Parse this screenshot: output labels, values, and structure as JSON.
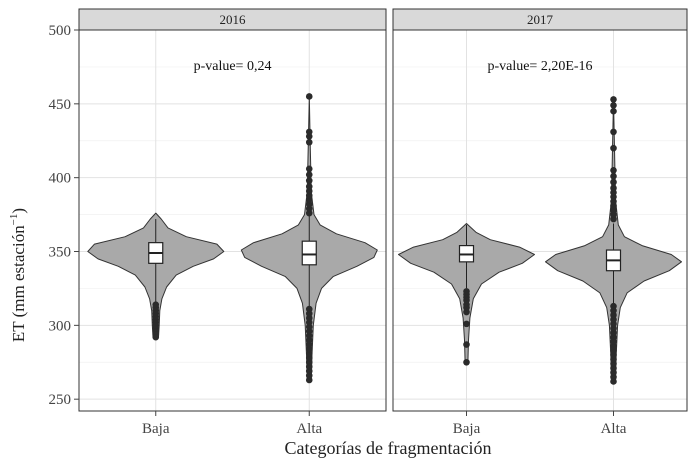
{
  "chart_data": {
    "type": "violin",
    "ylabel": "ET (mm estación",
    "ylabel_sup": "−1",
    "ylabel_close": ")",
    "xlabel": "Categorías de fragmentación",
    "ylim": [
      242,
      500
    ],
    "yticks": [
      250,
      300,
      350,
      400,
      450,
      500
    ],
    "categories": [
      "Baja",
      "Alta"
    ],
    "grid": true,
    "colors": {
      "violin_fill": "#a9a9a9",
      "strip_fill": "#d9d9d9",
      "outlier": "#2b2b2b",
      "box_fill": "#ffffff"
    },
    "panels": [
      {
        "title": "2016",
        "annotation": "p-value= 0,24",
        "groups": [
          {
            "category": "Baja",
            "min": 292,
            "max": 376,
            "q1": 342,
            "median": 349,
            "q3": 356,
            "whisker_low": 316,
            "whisker_high": 372,
            "density": [
              [
                292,
                0.04
              ],
              [
                300,
                0.05
              ],
              [
                310,
                0.06
              ],
              [
                318,
                0.09
              ],
              [
                326,
                0.16
              ],
              [
                334,
                0.3
              ],
              [
                340,
                0.55
              ],
              [
                345,
                0.85
              ],
              [
                350,
                1.0
              ],
              [
                355,
                0.9
              ],
              [
                360,
                0.45
              ],
              [
                366,
                0.18
              ],
              [
                372,
                0.08
              ],
              [
                376,
                0.0
              ]
            ],
            "outliers": [
              292,
              294,
              296,
              298,
              300,
              302,
              304,
              306,
              308,
              310,
              312,
              314
            ]
          },
          {
            "category": "Alta",
            "min": 263,
            "max": 455,
            "q1": 341,
            "median": 348,
            "q3": 357,
            "whisker_low": 313,
            "whisker_high": 375,
            "density": [
              [
                263,
                0.03
              ],
              [
                280,
                0.04
              ],
              [
                300,
                0.06
              ],
              [
                315,
                0.1
              ],
              [
                325,
                0.18
              ],
              [
                333,
                0.35
              ],
              [
                340,
                0.7
              ],
              [
                346,
                0.95
              ],
              [
                351,
                1.0
              ],
              [
                356,
                0.82
              ],
              [
                362,
                0.4
              ],
              [
                368,
                0.16
              ],
              [
                375,
                0.07
              ],
              [
                390,
                0.03
              ],
              [
                420,
                0.015
              ],
              [
                455,
                0.0
              ]
            ],
            "outliers": [
              263,
              266,
              269,
              272,
              275,
              278,
              281,
              284,
              287,
              290,
              293,
              296,
              299,
              302,
              305,
              308,
              311,
              376,
              379,
              382,
              385,
              388,
              391,
              394,
              398,
              402,
              406,
              424,
              428,
              431,
              455
            ]
          }
        ]
      },
      {
        "title": "2017",
        "annotation": "p-value= 2,20E-16",
        "groups": [
          {
            "category": "Baja",
            "min": 275,
            "max": 369,
            "q1": 343,
            "median": 348,
            "q3": 354,
            "whisker_low": 325,
            "whisker_high": 368,
            "density": [
              [
                275,
                0.02
              ],
              [
                290,
                0.03
              ],
              [
                305,
                0.05
              ],
              [
                318,
                0.1
              ],
              [
                328,
                0.22
              ],
              [
                336,
                0.48
              ],
              [
                342,
                0.82
              ],
              [
                348,
                1.0
              ],
              [
                353,
                0.78
              ],
              [
                358,
                0.35
              ],
              [
                363,
                0.14
              ],
              [
                369,
                0.0
              ]
            ],
            "outliers": [
              275,
              287,
              301,
              309,
              312,
              314,
              317,
              319,
              321,
              323
            ]
          },
          {
            "category": "Alta",
            "min": 262,
            "max": 453,
            "q1": 337,
            "median": 344,
            "q3": 351,
            "whisker_low": 314,
            "whisker_high": 369,
            "density": [
              [
                262,
                0.03
              ],
              [
                280,
                0.04
              ],
              [
                300,
                0.06
              ],
              [
                312,
                0.1
              ],
              [
                322,
                0.2
              ],
              [
                330,
                0.45
              ],
              [
                337,
                0.82
              ],
              [
                343,
                1.0
              ],
              [
                348,
                0.85
              ],
              [
                354,
                0.42
              ],
              [
                360,
                0.16
              ],
              [
                368,
                0.07
              ],
              [
                385,
                0.03
              ],
              [
                420,
                0.015
              ],
              [
                453,
                0.0
              ]
            ],
            "outliers": [
              262,
              265,
              268,
              271,
              274,
              277,
              280,
              283,
              286,
              289,
              292,
              295,
              298,
              301,
              304,
              307,
              310,
              313,
              372,
              375,
              378,
              381,
              384,
              387,
              390,
              393,
              397,
              401,
              405,
              420,
              431,
              445,
              449,
              453
            ]
          }
        ]
      }
    ]
  }
}
